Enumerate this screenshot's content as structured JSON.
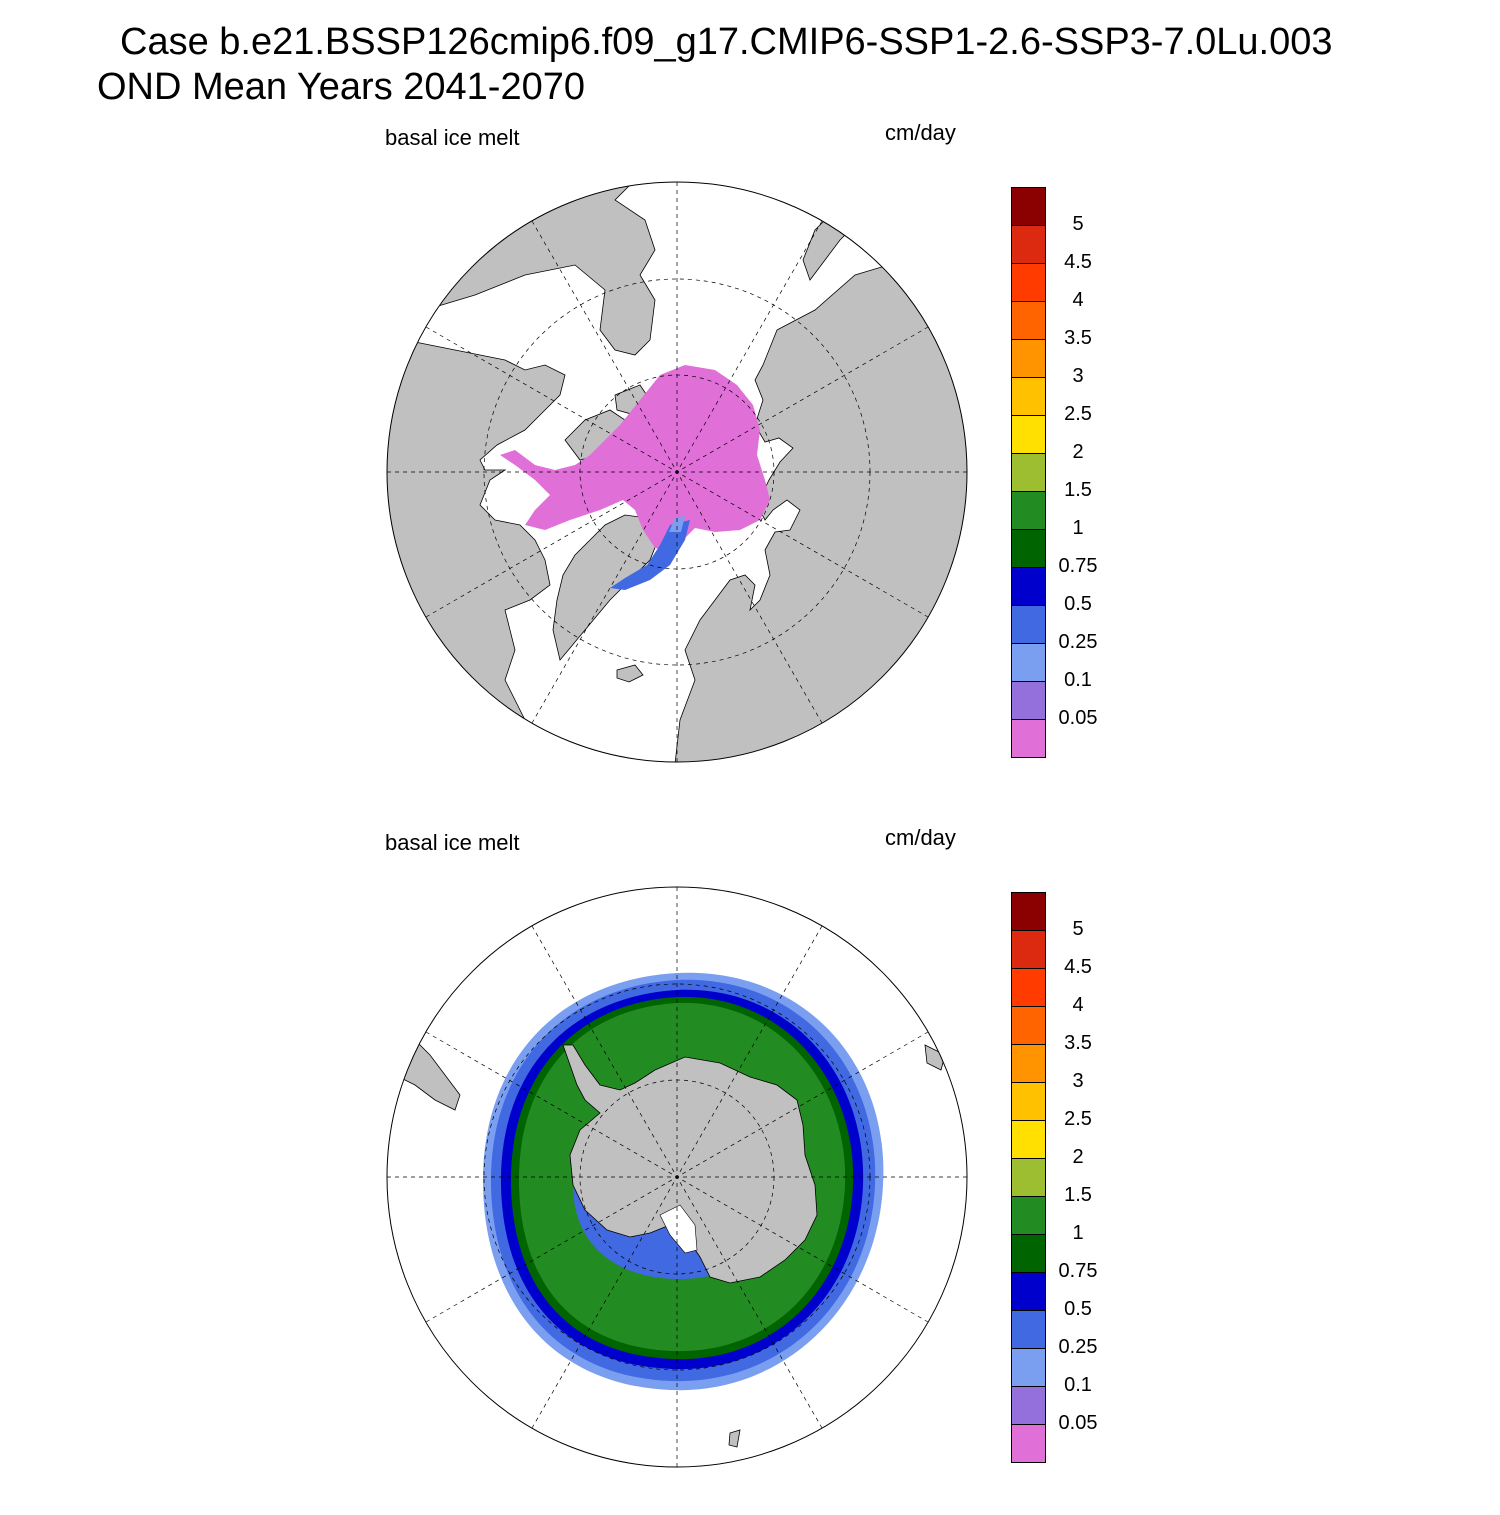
{
  "title": {
    "line1": "Case b.e21.BSSP126cmip6.f09_g17.CMIP6-SSP1-2.6-SSP3-7.0Lu.003",
    "line2": "OND Mean   Years 2041-2070"
  },
  "panels": [
    {
      "id": "north",
      "left_label": "basal ice melt",
      "right_label": "cm/day",
      "hemisphere": "Northern Hemisphere polar stereographic"
    },
    {
      "id": "south",
      "left_label": "basal ice melt",
      "right_label": "cm/day",
      "hemisphere": "Southern Hemisphere polar stereographic"
    }
  ],
  "colorbar": {
    "levels": [
      "5",
      "4.5",
      "4",
      "3.5",
      "3",
      "2.5",
      "2",
      "1.5",
      "1",
      "0.75",
      "0.5",
      "0.25",
      "0.1",
      "0.05"
    ],
    "colors": [
      "#8b0000",
      "#dc2a10",
      "#ff3b00",
      "#ff6400",
      "#ff9400",
      "#ffc100",
      "#ffe000",
      "#9dbe30",
      "#228b22",
      "#006400",
      "#0000cd",
      "#4169e1",
      "#7b9ff0",
      "#9370db",
      "#e070d8"
    ]
  },
  "colors": {
    "land": "#c0c0c0",
    "ocean": "#ffffff",
    "north_field": "#e070d8",
    "north_blue": "#4169e1",
    "grid": "#000000"
  }
}
